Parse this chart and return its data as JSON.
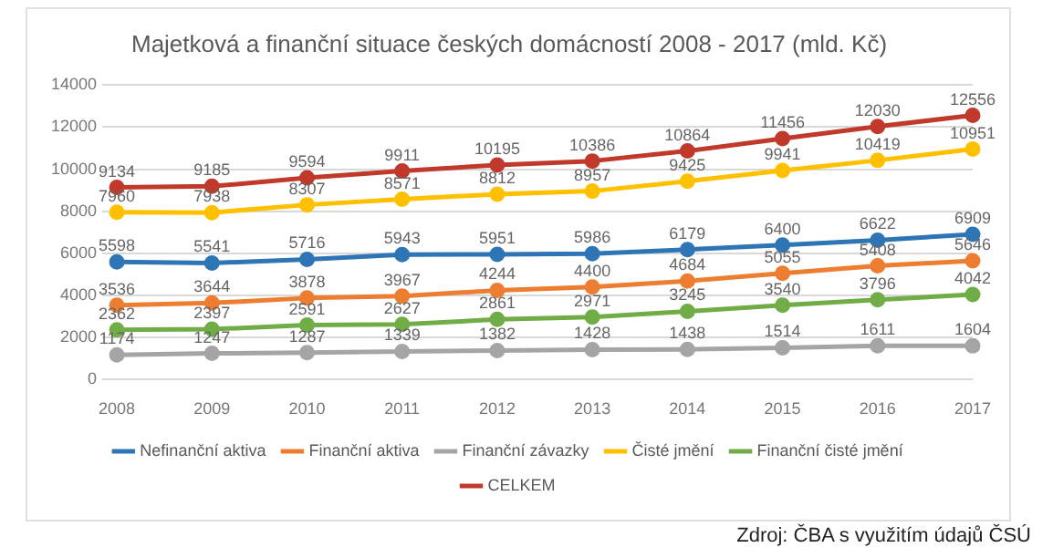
{
  "chart_data": {
    "type": "line",
    "title": "Majetková a finanční situace českých domácností 2008 - 2017 (mld. Kč)",
    "categories": [
      "2008",
      "2009",
      "2010",
      "2011",
      "2012",
      "2013",
      "2014",
      "2015",
      "2016",
      "2017"
    ],
    "series": [
      {
        "name": "Nefinanční aktiva",
        "color": "#2e75b6",
        "values": [
          5598,
          5541,
          5716,
          5943,
          5951,
          5986,
          6179,
          6400,
          6622,
          6909
        ]
      },
      {
        "name": "Finanční aktiva",
        "color": "#ed7d31",
        "values": [
          3536,
          3644,
          3878,
          3967,
          4244,
          4400,
          4684,
          5055,
          5408,
          5646
        ]
      },
      {
        "name": "Finanční závazky",
        "color": "#a5a5a5",
        "values": [
          1174,
          1247,
          1287,
          1339,
          1382,
          1428,
          1438,
          1514,
          1611,
          1604
        ]
      },
      {
        "name": "Čisté jmění",
        "color": "#ffc000",
        "values": [
          7960,
          7938,
          8307,
          8571,
          8812,
          8957,
          9425,
          9941,
          10419,
          10951
        ]
      },
      {
        "name": "Finanční čisté jmění",
        "color": "#70ad47",
        "values": [
          2362,
          2397,
          2591,
          2627,
          2861,
          2971,
          3245,
          3540,
          3796,
          4042
        ]
      },
      {
        "name": "CELKEM",
        "color": "#c0392b",
        "values": [
          9134,
          9185,
          9594,
          9911,
          10195,
          10386,
          10864,
          11456,
          12030,
          12556
        ]
      }
    ],
    "ylim": [
      0,
      14000
    ],
    "yticks": [
      0,
      2000,
      4000,
      6000,
      8000,
      10000,
      12000,
      14000
    ],
    "grid": "y",
    "legend": "bottom",
    "marker": "circle",
    "line_style": "solid",
    "data_labels": true,
    "annotations": [
      "Zdroj: ČBA s využitím údajů ČSÚ"
    ]
  }
}
